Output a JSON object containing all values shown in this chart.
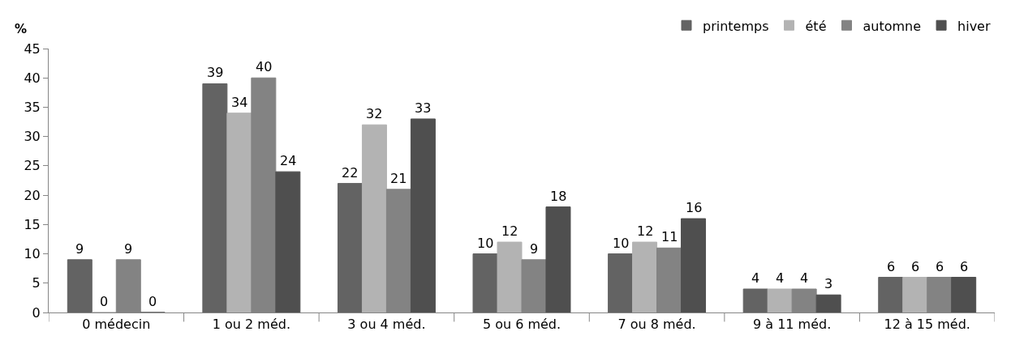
{
  "chart_data": {
    "type": "bar",
    "ylabel": "%",
    "categories": [
      "0 médecin",
      "1 ou 2 méd.",
      "3 ou 4 méd.",
      "5 ou 6 méd.",
      "7 ou 8 méd.",
      "9 à 11 méd.",
      "12 à 15 méd."
    ],
    "series": [
      {
        "name": "printemps",
        "color": "#636363",
        "values": [
          9,
          39,
          22,
          10,
          10,
          4,
          6
        ]
      },
      {
        "name": "été",
        "color": "#b3b3b3",
        "values": [
          0,
          34,
          32,
          12,
          12,
          4,
          6
        ]
      },
      {
        "name": "automne",
        "color": "#838383",
        "values": [
          9,
          40,
          21,
          9,
          11,
          4,
          6
        ]
      },
      {
        "name": "hiver",
        "color": "#4f4f4f",
        "values": [
          0,
          24,
          33,
          18,
          16,
          3,
          6
        ]
      }
    ],
    "ylim": [
      0,
      45
    ],
    "yticks": [
      0,
      5,
      10,
      15,
      20,
      25,
      30,
      35,
      40,
      45
    ],
    "data_labels": true,
    "grid": false,
    "legend": "top right"
  }
}
